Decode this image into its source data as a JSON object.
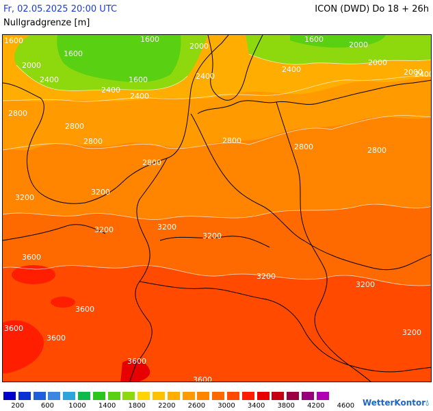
{
  "header": {
    "date_time": "Fr, 02.05.2025 20:00 UTC",
    "model_run": "ICON (DWD) Do 18 + 26h",
    "parameter": "Nullgradgrenze [m]"
  },
  "map": {
    "contour_labels": [
      {
        "text": "1600"
      },
      {
        "text": "1600"
      },
      {
        "text": "1600"
      },
      {
        "text": "1600"
      },
      {
        "text": "1600"
      },
      {
        "text": "2000"
      },
      {
        "text": "2000"
      },
      {
        "text": "2000"
      },
      {
        "text": "2000"
      },
      {
        "text": "2400"
      },
      {
        "text": "2400"
      },
      {
        "text": "2400"
      },
      {
        "text": "2400"
      },
      {
        "text": "2400"
      },
      {
        "text": "2400"
      },
      {
        "text": "2000"
      },
      {
        "text": "2800"
      },
      {
        "text": "2800"
      },
      {
        "text": "2800"
      },
      {
        "text": "2800"
      },
      {
        "text": "2800"
      },
      {
        "text": "2800"
      },
      {
        "text": "2800"
      },
      {
        "text": "3200"
      },
      {
        "text": "3200"
      },
      {
        "text": "3200"
      },
      {
        "text": "3200"
      },
      {
        "text": "3200"
      },
      {
        "text": "3200"
      },
      {
        "text": "3200"
      },
      {
        "text": "3200"
      },
      {
        "text": "3600"
      },
      {
        "text": "3600"
      },
      {
        "text": "3600"
      },
      {
        "text": "3600"
      },
      {
        "text": "3600"
      },
      {
        "text": "3600"
      }
    ]
  },
  "legend": {
    "colors": [
      "#0000c8",
      "#0a32d2",
      "#1f5fd9",
      "#3a86e0",
      "#2ea4dc",
      "#0fb94b",
      "#2ac61e",
      "#5ad012",
      "#8ed80e",
      "#ffd400",
      "#ffc200",
      "#ffae00",
      "#ff9a00",
      "#ff8400",
      "#ff6a00",
      "#ff4a00",
      "#ff1e00",
      "#e60000",
      "#c40012",
      "#9b0040",
      "#960078",
      "#b000b4"
    ],
    "tick_labels": [
      "200",
      "600",
      "1000",
      "1400",
      "1800",
      "2200",
      "2600",
      "3000",
      "3400",
      "3800",
      "4200",
      "4600"
    ]
  },
  "branding": {
    "name": "WetterKontor",
    "icon": "water-drop-icon"
  }
}
